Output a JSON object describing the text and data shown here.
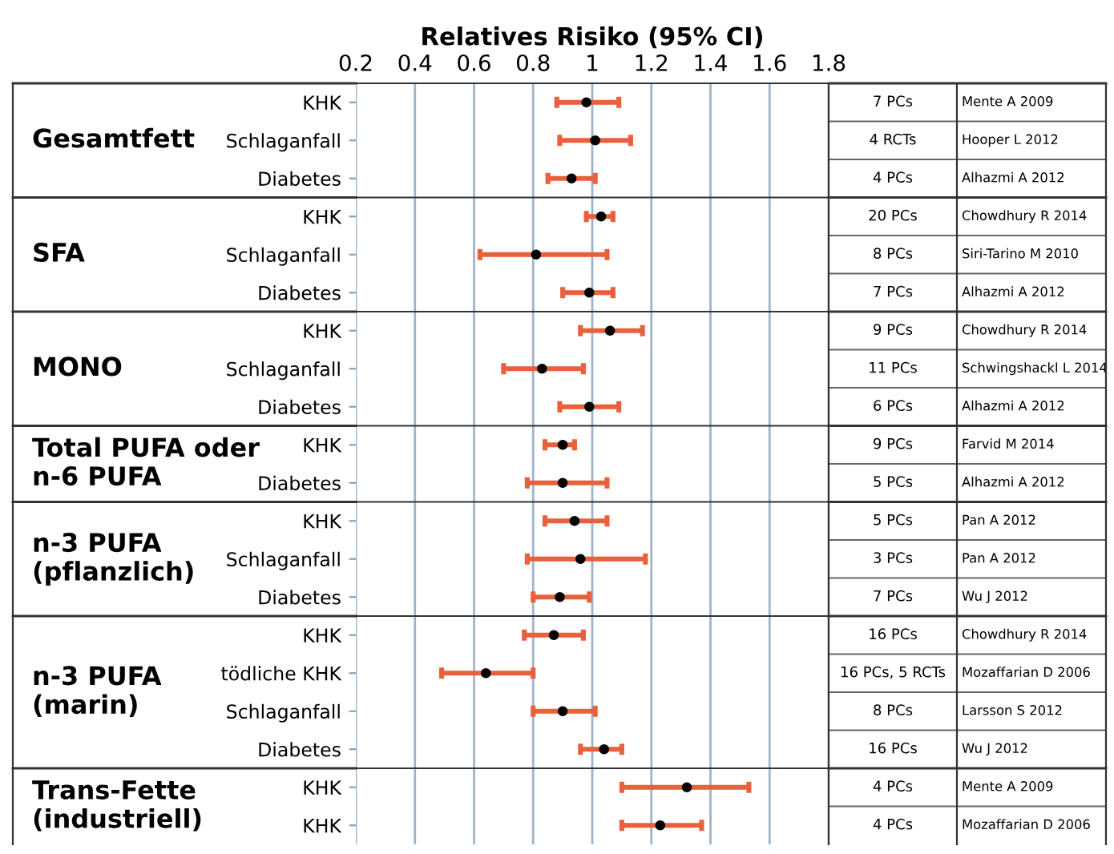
{
  "chart_data": [
    {
      "type": "scatter",
      "orientation": "horizontal",
      "title": "Gesamtfett",
      "xlabel": "Relatives Risiko (95% CI)",
      "categories": [
        "KHK",
        "Schlaganfall",
        "Diabetes"
      ],
      "values": [
        0.98,
        1.01,
        0.93
      ],
      "errors": [
        [
          0.88,
          1.09
        ],
        [
          0.89,
          1.13
        ],
        [
          0.85,
          1.01
        ]
      ],
      "color": "#000000",
      "marker": "circle",
      "xlim": [
        0.2,
        1.8
      ],
      "xticks": [
        0.2,
        0.4,
        0.6,
        0.8,
        1,
        1.2,
        1.4,
        1.6,
        1.8
      ],
      "grid": "x",
      "annotations": [
        "7 PCs",
        "Mente A 2009",
        "4 RCTs",
        "Hooper L 2012",
        "4 PCs",
        "Alhazmi A 2012"
      ]
    },
    {
      "type": "scatter",
      "orientation": "horizontal",
      "title": "SFA",
      "categories": [
        "KHK",
        "Schlaganfall",
        "Diabetes"
      ],
      "values": [
        1.03,
        0.81,
        0.99
      ],
      "errors": [
        [
          0.98,
          1.07
        ],
        [
          0.62,
          1.05
        ],
        [
          0.9,
          1.07
        ]
      ],
      "color": "#000000",
      "marker": "circle",
      "xlim": [
        0.2,
        1.8
      ],
      "xticks": [
        0.2,
        0.4,
        0.6,
        0.8,
        1,
        1.2,
        1.4,
        1.6,
        1.8
      ],
      "tick_labels": "y",
      "grid": "x",
      "annotations": [
        "20 PCs",
        "Chowdhury R 2014",
        "8 PCs",
        "Siri-Tarino M 2010",
        "7 PCs",
        "Alhazmi A 2012"
      ]
    },
    {
      "type": "scatter",
      "orientation": "horizontal",
      "title": "MONO",
      "categories": [
        "KHK",
        "Schlaganfall",
        "Diabetes"
      ],
      "values": [
        1.06,
        0.83,
        0.99
      ],
      "errors": [
        [
          0.96,
          1.17
        ],
        [
          0.7,
          0.97
        ],
        [
          0.89,
          1.09
        ]
      ],
      "color": "#000000",
      "marker": "circle",
      "xlim": [
        0.2,
        1.8
      ],
      "xticks": [
        0.2,
        0.4,
        0.6,
        0.8,
        1,
        1.2,
        1.4,
        1.6,
        1.8
      ],
      "tick_labels": "y",
      "grid": "x",
      "annotations": [
        "9 PCs",
        "Chowdhury R 2014",
        "11 PCs",
        "Schwingshackl L 2014",
        "6 PCs",
        "Alhazmi A 2012"
      ]
    },
    {
      "type": "scatter",
      "orientation": "horizontal",
      "title": "Total PUFA oder\nn-6 PUFA",
      "categories": [
        "KHK",
        "Diabetes"
      ],
      "values": [
        0.9,
        0.9
      ],
      "errors": [
        [
          0.84,
          0.94
        ],
        [
          0.78,
          1.05
        ]
      ],
      "color": "#000000",
      "marker": "circle",
      "xlim": [
        0.2,
        1.8
      ],
      "xticks": [
        0.2,
        0.4,
        0.6,
        0.8,
        1,
        1.2,
        1.4,
        1.6,
        1.8
      ],
      "tick_labels": "y",
      "grid": "x",
      "annotations": [
        "9 PCs",
        "Farvid M 2014",
        "5 PCs",
        "Alhazmi A 2012"
      ]
    },
    {
      "type": "scatter",
      "orientation": "horizontal",
      "title": "n-3 PUFA\n(pflanzlich)",
      "categories": [
        "KHK",
        "Schlaganfall",
        "Diabetes"
      ],
      "values": [
        0.94,
        0.96,
        0.89
      ],
      "errors": [
        [
          0.84,
          1.05
        ],
        [
          0.78,
          1.18
        ],
        [
          0.8,
          0.99
        ]
      ],
      "color": "#000000",
      "marker": "circle",
      "xlim": [
        0.2,
        1.8
      ],
      "xticks": [
        0.2,
        0.4,
        0.6,
        0.8,
        1,
        1.2,
        1.4,
        1.6,
        1.8
      ],
      "tick_labels": "y",
      "grid": "x",
      "annotations": [
        "5 PCs",
        "Pan A 2012",
        "3 PCs",
        "Pan A 2012",
        "7 PCs",
        "Wu J 2012"
      ]
    },
    {
      "type": "scatter",
      "orientation": "horizontal",
      "title": "n-3 PUFA\n(marin)",
      "categories": [
        "KHK",
        "tödliche KHK",
        "Schlaganfall",
        "Diabetes"
      ],
      "values": [
        0.87,
        0.64,
        0.9,
        1.04
      ],
      "errors": [
        [
          0.77,
          0.97
        ],
        [
          0.49,
          0.8
        ],
        [
          0.8,
          1.01
        ],
        [
          0.96,
          1.1
        ]
      ],
      "color": "#000000",
      "marker": "circle",
      "xlim": [
        0.2,
        1.8
      ],
      "xticks": [
        0.2,
        0.4,
        0.6,
        0.8,
        1,
        1.2,
        1.4,
        1.6,
        1.8
      ],
      "tick_labels": "y",
      "grid": "x",
      "annotations": [
        "16 PCs",
        "Chowdhury R 2014",
        "16 PCs, 5 RCTs",
        "Mozaffarian D 2006",
        "8 PCs",
        "Larsson S 2012",
        "16 PCs",
        "Wu J 2012"
      ]
    },
    {
      "type": "scatter",
      "orientation": "horizontal",
      "title": "Trans-Fette\n(industriell)",
      "categories": [
        "KHK",
        "KHK"
      ],
      "values": [
        1.32,
        1.23
      ],
      "errors": [
        [
          1.1,
          1.53
        ],
        [
          1.1,
          1.37
        ]
      ],
      "color": "#000000",
      "marker": "circle",
      "xlim": [
        0.2,
        1.8
      ],
      "xticks": [
        0.2,
        0.4,
        0.6,
        0.8,
        1,
        1.2,
        1.4,
        1.6,
        1.8
      ],
      "tick_labels": "y",
      "grid": "x",
      "annotations": [
        "4 PCs",
        "Mente A 2009",
        "4 PCs",
        "Mozaffarian D 2006"
      ]
    }
  ]
}
